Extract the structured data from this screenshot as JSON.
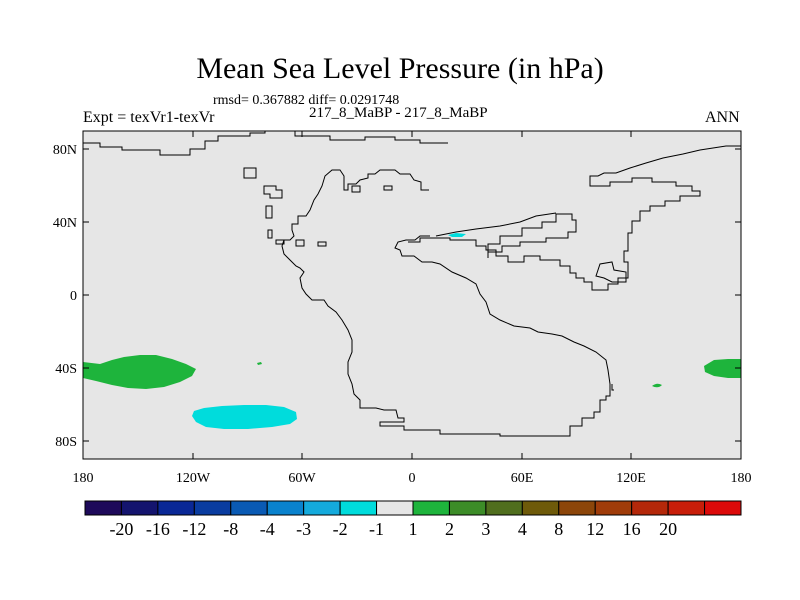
{
  "title": "Mean Sea Level Pressure (in hPa)",
  "stats_line": "rmsd= 0.367882 diff= 0.0291748",
  "case_line": "217_8_MaBP - 217_8_MaBP",
  "expt_label": "Expt = texVr1-texVr",
  "season": "ANN",
  "y_ticks": [
    "80N",
    "40N",
    "0",
    "40S",
    "80S"
  ],
  "x_ticks": [
    "180",
    "120W",
    "60W",
    "0",
    "60E",
    "120E",
    "180"
  ],
  "colorbar": {
    "colors": [
      "#1e0a5a",
      "#14146e",
      "#0a2896",
      "#0a3ca0",
      "#0a5ab4",
      "#0a82cd",
      "#14aadc",
      "#00dcdc",
      "#e6e6e6",
      "#1eb43c",
      "#3c8c28",
      "#506e1e",
      "#6e5a0a",
      "#8c460a",
      "#a03c0a",
      "#b4280a",
      "#c81e0a",
      "#dc0a0a"
    ],
    "labels": [
      "-20",
      "-16",
      "-12",
      "-8",
      "-4",
      "-3",
      "-2",
      "-1",
      "1",
      "2",
      "3",
      "4",
      "8",
      "12",
      "16",
      "20"
    ]
  },
  "colors": {
    "background": "#e6e6e6",
    "positive_anomaly": "#1eb43c",
    "negative_anomaly": "#00dcdc",
    "coastline": "#000000"
  }
}
